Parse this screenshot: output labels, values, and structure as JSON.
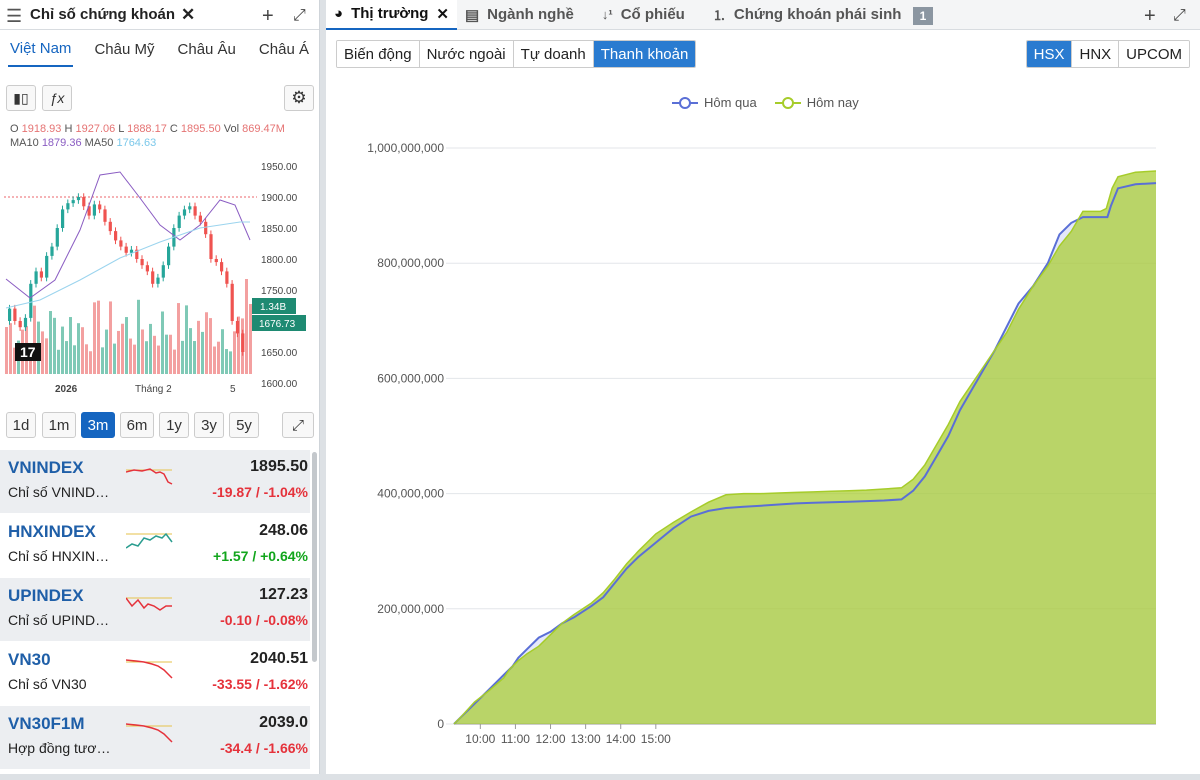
{
  "left_panel": {
    "title": "Chỉ số chứng khoán",
    "regions": [
      "Việt Nam",
      "Châu Mỹ",
      "Châu Âu",
      "Châu Á"
    ],
    "ohlc": {
      "o_label": "O",
      "o": "1918.93",
      "h_label": "H",
      "h": "1927.06",
      "l_label": "L",
      "l": "1888.17",
      "c_label": "C",
      "c": "1895.50",
      "vol_label": "Vol",
      "vol": "869.47M",
      "ma10_label": "MA10",
      "ma10": "1879.36",
      "ma50_label": "MA50",
      "ma50": "1764.63"
    },
    "price_axis": [
      "1950.00",
      "1900.00",
      "1850.00",
      "1800.00",
      "1750.00",
      "1700.00",
      "1650.00",
      "1600.00"
    ],
    "vol_badge": "1.34B",
    "price_badge": "1676.73",
    "time_axis": [
      "2026",
      "Tháng 2",
      "5"
    ],
    "logo": "17",
    "timeframes": [
      "1d",
      "1m",
      "3m",
      "6m",
      "1y",
      "3y",
      "5y"
    ],
    "active_timeframe": "3m",
    "indices": [
      {
        "name": "VNINDEX",
        "desc": "Chỉ số VNIND…",
        "value": "1895.50",
        "change": "-19.87 / -1.04%",
        "dir": "neg"
      },
      {
        "name": "HNXINDEX",
        "desc": "Chỉ số HNXIN…",
        "value": "248.06",
        "change": "+1.57 / +0.64%",
        "dir": "pos"
      },
      {
        "name": "UPINDEX",
        "desc": "Chỉ số UPIND…",
        "value": "127.23",
        "change": "-0.10 / -0.08%",
        "dir": "neg"
      },
      {
        "name": "VN30",
        "desc": "Chỉ số VN30",
        "value": "2040.51",
        "change": "-33.55 / -1.62%",
        "dir": "neg"
      },
      {
        "name": "VN30F1M",
        "desc": "Hợp đồng tươ…",
        "value": "2039.0",
        "change": "-34.4 / -1.66%",
        "dir": "neg"
      }
    ]
  },
  "right_panel": {
    "tabs": [
      "Thị trường",
      "Ngành nghề",
      "Cổ phiếu",
      "Chứng khoán phái sinh"
    ],
    "tab_badge": "1",
    "subtabs": [
      "Biến động",
      "Nước ngoài",
      "Tự doanh",
      "Thanh khoản"
    ],
    "active_subtab": "Thanh khoản",
    "exchanges": [
      "HSX",
      "HNX",
      "UPCOM"
    ],
    "active_exchange": "HSX"
  },
  "colors": {
    "accent": "#1565c0",
    "up": "#11a51b",
    "down": "#e5323b",
    "yesterday": "#5a6fd6",
    "today": "#a6cc2a"
  },
  "chart_data": {
    "type": "area",
    "series": [
      {
        "name": "Hôm qua",
        "points": [
          [
            555,
            0
          ],
          [
            565,
            10
          ],
          [
            590,
            35
          ],
          [
            615,
            60
          ],
          [
            640,
            85
          ],
          [
            655,
            100
          ],
          [
            665,
            115
          ],
          [
            680,
            130
          ],
          [
            700,
            150
          ],
          [
            720,
            160
          ],
          [
            740,
            175
          ],
          [
            760,
            185
          ],
          [
            790,
            205
          ],
          [
            810,
            220
          ],
          [
            830,
            245
          ],
          [
            850,
            270
          ],
          [
            870,
            290
          ],
          [
            900,
            315
          ],
          [
            930,
            340
          ],
          [
            960,
            360
          ],
          [
            990,
            370
          ],
          [
            1020,
            375
          ],
          [
            1050,
            377
          ],
          [
            1080,
            379
          ],
          [
            1110,
            381
          ],
          [
            1140,
            383
          ],
          [
            1170,
            384
          ],
          [
            1200,
            385
          ],
          [
            1230,
            386
          ],
          [
            1260,
            387
          ],
          [
            1290,
            388
          ],
          [
            1320,
            390
          ],
          [
            1340,
            405
          ],
          [
            1360,
            430
          ],
          [
            1380,
            465
          ],
          [
            1400,
            500
          ],
          [
            1420,
            545
          ],
          [
            1440,
            580
          ],
          [
            1460,
            615
          ],
          [
            1480,
            650
          ],
          [
            1500,
            690
          ],
          [
            1520,
            730
          ],
          [
            1545,
            760
          ],
          [
            1570,
            800
          ],
          [
            1590,
            850
          ],
          [
            1610,
            870
          ],
          [
            1630,
            880
          ],
          [
            1660,
            880
          ],
          [
            1672,
            880
          ],
          [
            1678,
            900
          ],
          [
            1690,
            930
          ],
          [
            1720,
            937
          ],
          [
            1755,
            939
          ]
        ]
      },
      {
        "name": "Hôm nay",
        "points": [
          [
            555,
            0
          ],
          [
            565,
            10
          ],
          [
            590,
            38
          ],
          [
            615,
            58
          ],
          [
            640,
            80
          ],
          [
            650,
            95
          ],
          [
            665,
            110
          ],
          [
            680,
            122
          ],
          [
            700,
            135
          ],
          [
            720,
            155
          ],
          [
            740,
            175
          ],
          [
            760,
            190
          ],
          [
            790,
            210
          ],
          [
            810,
            228
          ],
          [
            830,
            252
          ],
          [
            850,
            278
          ],
          [
            870,
            300
          ],
          [
            900,
            330
          ],
          [
            930,
            350
          ],
          [
            960,
            368
          ],
          [
            990,
            385
          ],
          [
            1020,
            398
          ],
          [
            1050,
            400
          ],
          [
            1080,
            400
          ],
          [
            1110,
            401
          ],
          [
            1140,
            402
          ],
          [
            1170,
            403
          ],
          [
            1200,
            404
          ],
          [
            1230,
            405
          ],
          [
            1260,
            406
          ],
          [
            1290,
            408
          ],
          [
            1320,
            410
          ],
          [
            1340,
            425
          ],
          [
            1360,
            450
          ],
          [
            1380,
            485
          ],
          [
            1400,
            520
          ],
          [
            1420,
            560
          ],
          [
            1440,
            590
          ],
          [
            1460,
            620
          ],
          [
            1480,
            650
          ],
          [
            1500,
            680
          ],
          [
            1520,
            720
          ],
          [
            1545,
            760
          ],
          [
            1570,
            795
          ],
          [
            1590,
            830
          ],
          [
            1610,
            855
          ],
          [
            1630,
            890
          ],
          [
            1660,
            890
          ],
          [
            1670,
            895
          ],
          [
            1680,
            930
          ],
          [
            1690,
            950
          ],
          [
            1720,
            958
          ],
          [
            1755,
            960
          ]
        ]
      }
    ],
    "ylim": [
      0,
      1000000000
    ],
    "xlim": [
      555,
      1755
    ],
    "y_ticks": [
      0,
      200000000,
      400000000,
      600000000,
      800000000,
      1000000000
    ],
    "y_tick_labels": [
      "0",
      "200,000,000",
      "400,000,000",
      "600,000,000",
      "800,000,000",
      "1,000,000,000"
    ],
    "x_ticks": [
      600,
      660,
      720,
      780,
      840,
      900
    ],
    "x_tick_labels": [
      "10:00",
      "11:00",
      "12:00",
      "13:00",
      "14:00",
      "15:00"
    ],
    "y_units": "points given as [minute-of-day, value in millions]",
    "legend": "top-center",
    "grid": true
  }
}
